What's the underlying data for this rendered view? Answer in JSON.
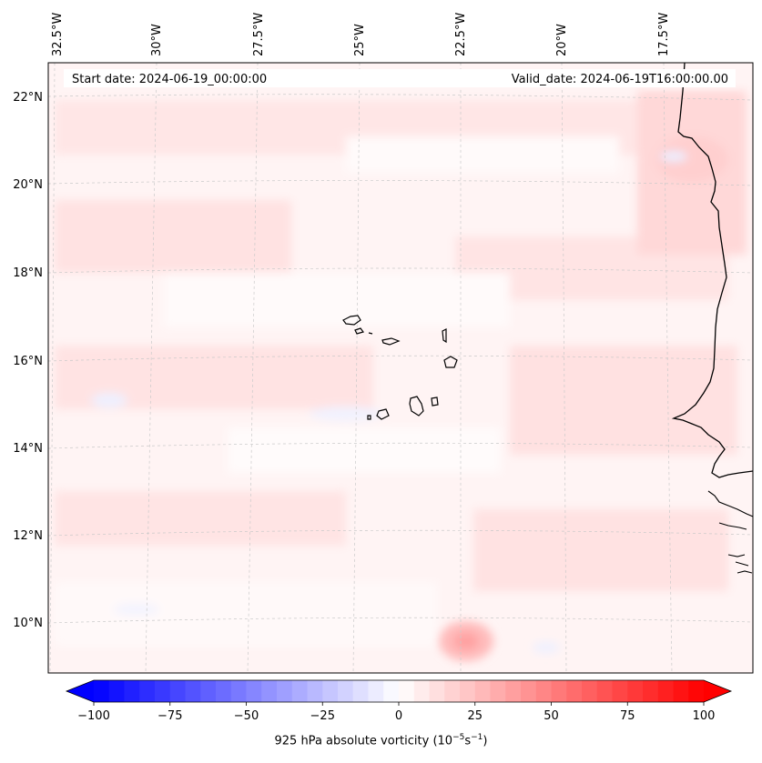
{
  "map": {
    "start_label": "Start date: 2024-06-19_00:00:00",
    "valid_label": "Valid_date: 2024-06-19T16:00:00.00",
    "lon_labels": [
      "32.5°W",
      "30°W",
      "27.5°W",
      "25°W",
      "22.5°W",
      "20°W",
      "17.5°W"
    ],
    "lat_labels": [
      "22°N",
      "20°N",
      "18°N",
      "16°N",
      "14°N",
      "12°N",
      "10°N"
    ],
    "feature_names": [
      "Cabo Verde islands",
      "West African coastline"
    ]
  },
  "colorbar": {
    "ticks": [
      "−100",
      "−75",
      "−50",
      "−25",
      "0",
      "25",
      "50",
      "75",
      "100"
    ],
    "min": -100,
    "max": 100,
    "levels": 40,
    "extend": "both",
    "colormap": "bwr",
    "label_main": "925 hPa absolute vorticity (10",
    "label_exp1": "−5",
    "label_mid": "s",
    "label_exp2": "−1",
    "label_end": ")"
  },
  "colors": {
    "low": "#0000ff",
    "mid": "#ffffff",
    "high": "#ff0000",
    "coast": "#000000"
  }
}
